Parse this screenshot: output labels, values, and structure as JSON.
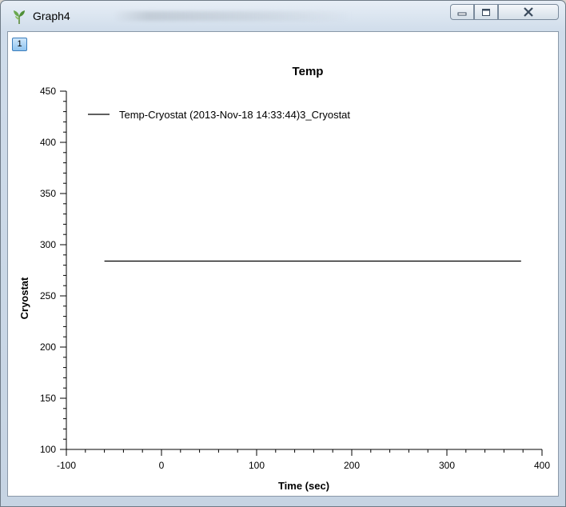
{
  "window": {
    "title": "Graph4",
    "tab_badge": "1",
    "icons": {
      "app": "plant-icon",
      "minimize": "minimize-icon",
      "maximize": "maximize-icon",
      "close": "close-icon"
    }
  },
  "chart_data": {
    "type": "line",
    "title": "Temp",
    "xlabel": "Time (sec)",
    "ylabel": "Cryostat",
    "xlim": [
      -100,
      400
    ],
    "ylim": [
      100,
      450
    ],
    "x_ticks": [
      -100,
      0,
      100,
      200,
      300,
      400
    ],
    "y_ticks": [
      100,
      150,
      200,
      250,
      300,
      350,
      400,
      450
    ],
    "grid": false,
    "legend_position": "top-left",
    "series": [
      {
        "name": "Temp-Cryostat (2013-Nov-18 14:33:44)3_Cryostat",
        "color": "#000000",
        "x": [
          -60,
          378
        ],
        "y": [
          284,
          284
        ]
      }
    ]
  }
}
